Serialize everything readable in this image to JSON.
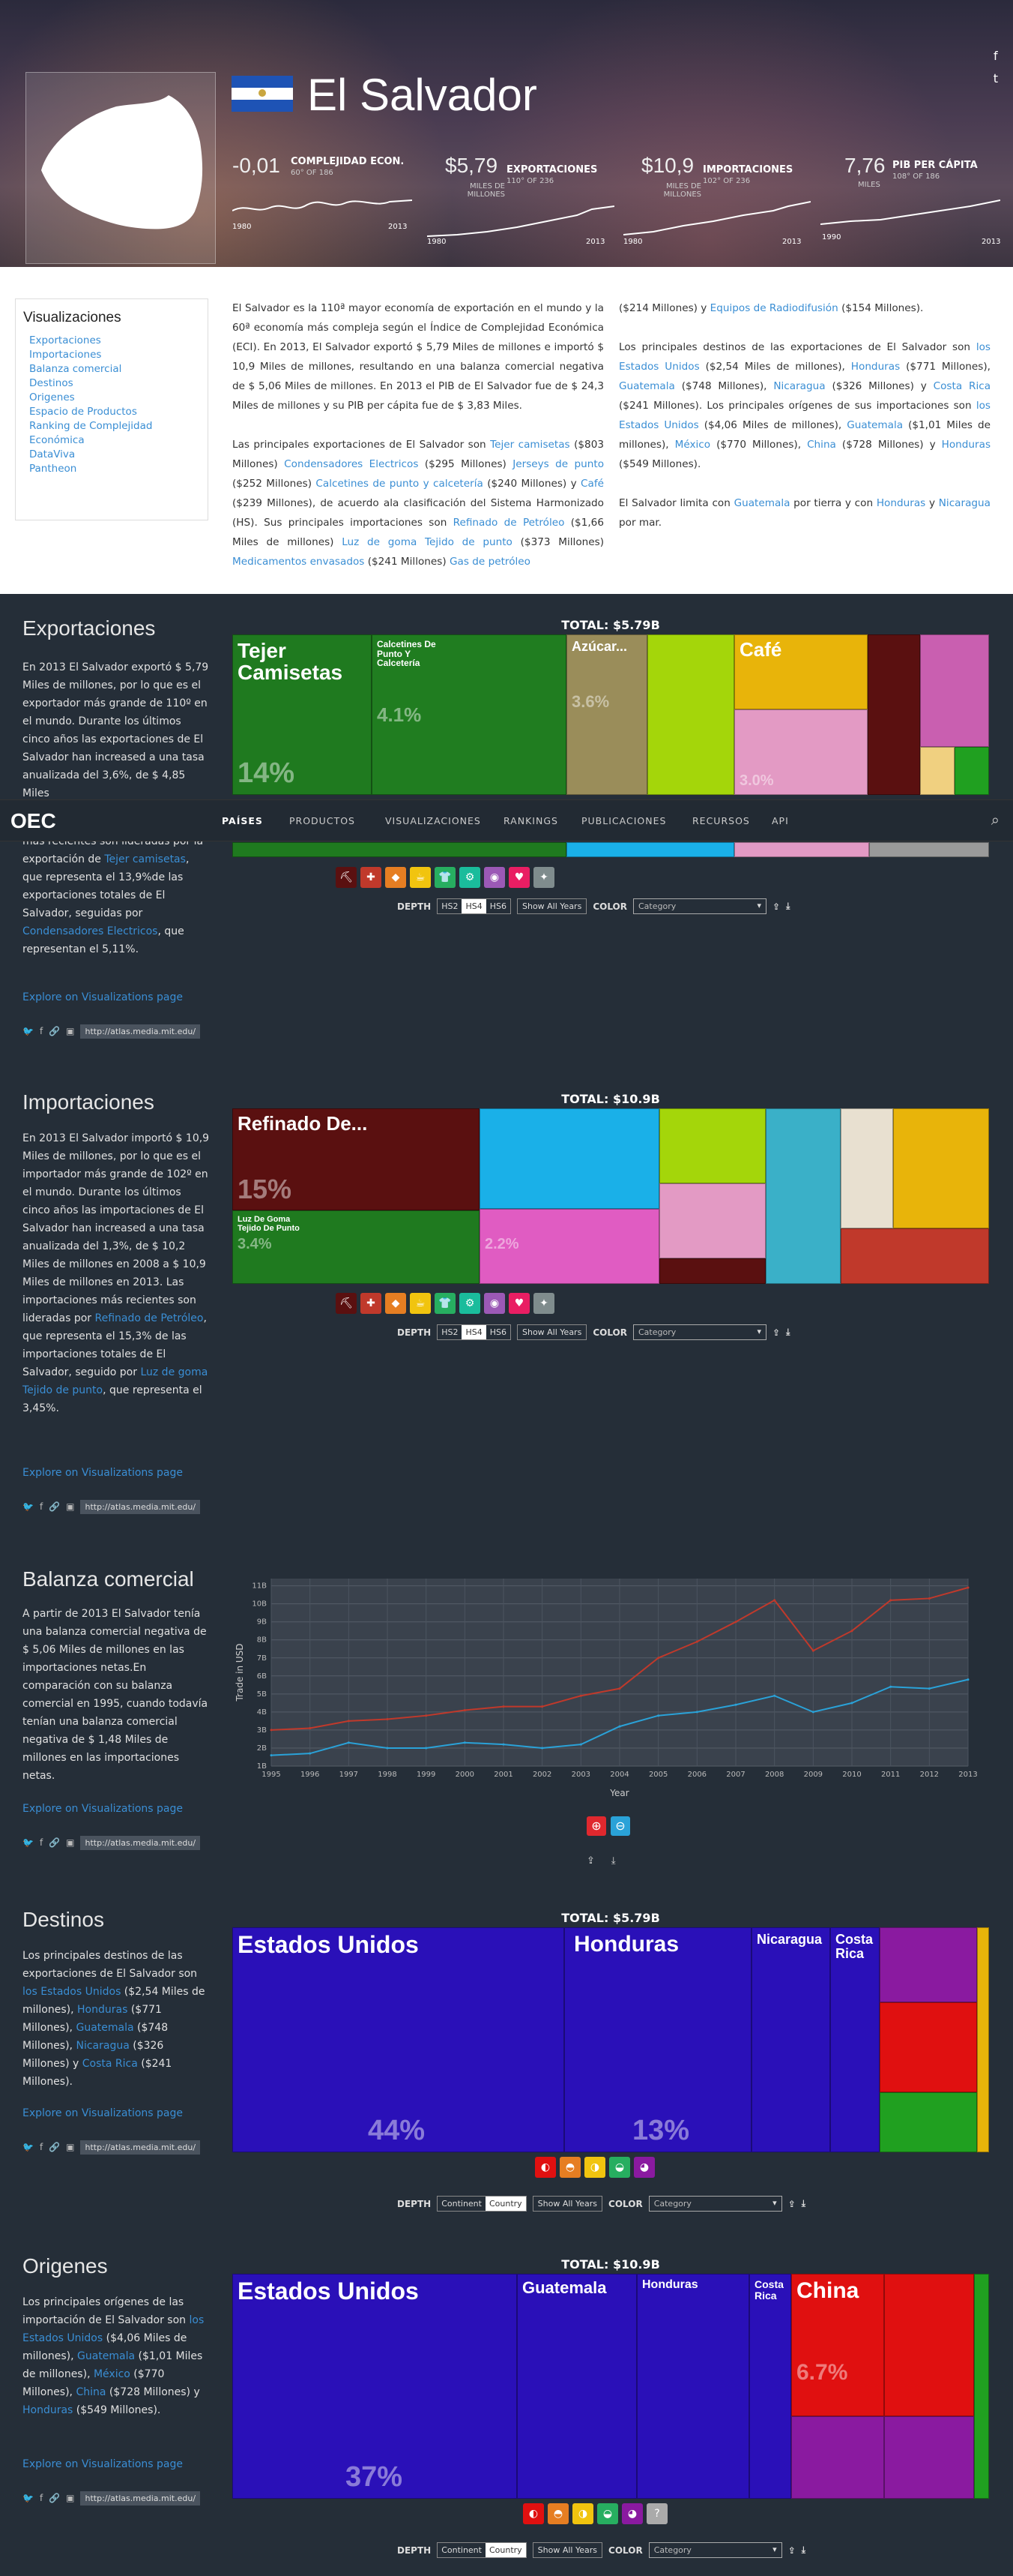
{
  "hero": {
    "country": "El Salvador",
    "social": [
      "f",
      "t"
    ],
    "stats": [
      {
        "value": "-0,01",
        "label": "COMPLEJIDAD ECON.",
        "rank": "60° OF 186",
        "unit": "",
        "start": "1980",
        "end": "2013"
      },
      {
        "value": "$5,79",
        "label": "EXPORTACIONES",
        "rank": "110° OF 236",
        "unit": "MILES DE MILLONES",
        "start": "1980",
        "end": "2013"
      },
      {
        "value": "$10,9",
        "label": "IMPORTACIONES",
        "rank": "102° OF 236",
        "unit": "MILES DE MILLONES",
        "start": "1980",
        "end": "2013"
      },
      {
        "value": "7,76",
        "label": "PIB PER CÁPITA",
        "rank": "108° OF 186",
        "unit": "MILES",
        "start": "1990",
        "end": "2013"
      }
    ]
  },
  "sidebar": {
    "title": "Visualizaciones",
    "links": [
      "Exportaciones",
      "Importaciones",
      "Balanza comercial",
      "Destinos",
      "Origenes",
      "Espacio de Productos",
      "Ranking de Complejidad Económica",
      "DataViva",
      "Pantheon"
    ]
  },
  "intro": {
    "p1": "El Salvador es la 110ª mayor economía de exportación en el mundo y la 60ª economía más compleja según el Índice de Complejidad Económica (ECI). En 2013, El Salvador exportó $ 5,79 Miles de millones e importó $ 10,9 Miles de millones, resultando en una balanza comercial negativa de $ 5,06 Miles de millones. En 2013 el PIB de El Salvador fue de $ 24,3 Miles de millones y su PIB per cápita fue de $ 3,83 Miles.",
    "p2a": "Las principales exportaciones de El Salvador son ",
    "p2_links": [
      "Tejer camisetas",
      "Condensadores Electricos",
      "Jerseys de punto",
      "Calcetines de punto y calcetería",
      "Café",
      "Refinado de Petróleo",
      "Luz de goma Tejido de punto",
      "Medicamentos envasados",
      "Gas de petróleo",
      "Equipos de Radiodifusión"
    ],
    "p2_amounts": [
      "($803 Millones)",
      "($295 Millones)",
      "($252 Millones)",
      "($240 Millones) y",
      "($239 Millones), de acuerdo ala clasificación del Sistema Harmonizado (HS). Sus principales importaciones son",
      "($1,66 Miles de millones)",
      "($373 Millones)",
      "($241 Millones)",
      "($214 Millones) y",
      "($154 Millones)."
    ],
    "p3a": "Los principales destinos de las exportaciones de El Salvador son ",
    "p3_links": [
      "los Estados Unidos",
      "Honduras",
      "Guatemala",
      "Nicaragua",
      "Costa Rica"
    ],
    "p3_amounts": [
      "($2,54 Miles de millones),",
      "($771 Millones),",
      "($748 Millones),",
      "($326 Millones) y",
      "($241 Millones). Los principales orígenes de sus importaciones son"
    ],
    "p3_links2": [
      "los Estados Unidos",
      "Guatemala",
      "México",
      "China",
      "Honduras"
    ],
    "p3_amounts2": [
      "($4,06 Miles de millones),",
      "($1,01 Miles de millones),",
      "($770 Millones),",
      "($728 Millones) y",
      "($549 Millones)."
    ],
    "p4a": "El Salvador limita con ",
    "p4_links": [
      "Guatemala",
      "Honduras",
      "Nicaragua"
    ],
    "p4_mid": " por tierra y con ",
    "p4_y": " y ",
    "p4_end": " por mar."
  },
  "nav": {
    "logo": "OEC",
    "items": [
      "PAÍSES",
      "PRODUCTOS",
      "VISUALIZACIONES",
      "RANKINGS",
      "PUBLICACIONES",
      "RECURSOS",
      "API"
    ]
  },
  "exports": {
    "title": "Exportaciones",
    "desc_pre": "En 2013 El Salvador exportó $ 5,79 Miles de millones, por lo que es el exportador más grande de 110º en el mundo. Durante los últimos cinco años las exportaciones de El Salvador han increased a una tasa anualizada del 3,6%, de $ 4,85 Miles",
    "desc_hidden": "de millones en 2008 a $ 5,79 Miles de millones en 2013. Las exportaciones más recientes son lideradas por la",
    "desc_visible": "más recientes son lideradas por la exportación de ",
    "link1": "Tejer camisetas",
    "desc_mid": ", que representa el 13,9%de las exportaciones totales de El Salvador, seguidas por ",
    "link2": "Condensadores Electricos",
    "desc_end": ", que representan el 5,11%.",
    "total": "TOTAL: $5.79B",
    "explore": "Explore on Visualizations page",
    "url": "http://atlas.media.mit.edu/"
  },
  "imports": {
    "title": "Importaciones",
    "desc_pre": "En 2013 El Salvador importó $ 10,9 Miles de millones, por lo que es el importador más grande de 102º en el mundo. Durante los últimos cinco años las importaciones de El Salvador han increased a una tasa anualizada del 1,3%, de $ 10,2 Miles de millones en 2008 a $ 10,9 Miles de millones en 2013. Las importaciones más recientes son lideradas por ",
    "link1": "Refinado de Petróleo",
    "desc_mid": ", que representa el 15,3% de las importaciones totales de El Salvador, seguido por ",
    "link2": "Luz de goma Tejido de punto",
    "desc_end": ", que representa el 3,45%.",
    "total": "TOTAL: $10.9B",
    "explore": "Explore on Visualizations page",
    "url": "http://atlas.media.mit.edu/"
  },
  "balance": {
    "title": "Balanza comercial",
    "desc": "A partir de 2013 El Salvador tenía una balanza comercial negativa de $ 5,06 Miles de millones en las importaciones netas.En comparación con su balanza comercial en 1995, cuando todavía tenían una balanza comercial negativa de $ 1,48 Miles de millones en las importaciones netas.",
    "explore": "Explore on Visualizations page",
    "url": "http://atlas.media.mit.edu/"
  },
  "destinations": {
    "title": "Destinos",
    "desc_pre": "Los principales destinos de las exportaciones de El Salvador son ",
    "links": [
      "los Estados Unidos",
      "Honduras",
      "Guatemala",
      "Nicaragua",
      "Costa Rica"
    ],
    "amounts": [
      " ($2,54 Miles de millones), ",
      " ($771 Millones), ",
      " ($748 Millones), ",
      " ($326 Millones) y ",
      " ($241 Millones)."
    ],
    "total": "TOTAL: $5.79B",
    "explore": "Explore on Visualizations page",
    "url": "http://atlas.media.mit.edu/"
  },
  "origins": {
    "title": "Origenes",
    "desc_pre": "Los principales orígenes de las importación de El Salvador son ",
    "links": [
      "los Estados Unidos",
      "Guatemala",
      "México",
      "China",
      "Honduras"
    ],
    "amounts": [
      " ($4,06 Miles de millones), ",
      " ($1,01 Miles de millones), ",
      " ($770 Millones), ",
      " ($728 Millones) y ",
      " ($549 Millones)."
    ],
    "total": "TOTAL: $10.9B",
    "explore": "Explore on Visualizations page",
    "url": "http://atlas.media.mit.edu/"
  },
  "controls": {
    "depth": "DEPTH",
    "hs": [
      "HS2",
      "HS4",
      "HS6"
    ],
    "geo": [
      "Continent",
      "Country"
    ],
    "show_all": "Show All Years",
    "color": "COLOR",
    "category": "Category"
  },
  "colors": {
    "link": "#3a8ed4",
    "bg": "#252e38",
    "exports_line": "#c0392b",
    "imports_line": "#2aa2d8"
  },
  "chart_data": {
    "type": "line",
    "x": [
      1995,
      1996,
      1997,
      1998,
      1999,
      2000,
      2001,
      2002,
      2003,
      2004,
      2005,
      2006,
      2007,
      2008,
      2009,
      2010,
      2011,
      2012,
      2013
    ],
    "series": [
      {
        "values": [
          3.0,
          3.1,
          3.5,
          3.6,
          3.8,
          4.1,
          4.3,
          4.3,
          4.9,
          5.3,
          7.0,
          7.9,
          9.0,
          10.2,
          7.4,
          8.5,
          10.2,
          10.3,
          10.9
        ]
      },
      {
        "values": [
          1.6,
          1.7,
          2.3,
          2.0,
          2.0,
          2.3,
          2.2,
          2.0,
          2.2,
          3.2,
          3.8,
          4.0,
          4.4,
          4.9,
          4.0,
          4.5,
          5.4,
          5.3,
          5.8
        ]
      }
    ],
    "xlabel": "Year",
    "ylabel": "Trade in USD",
    "yticks": [
      "1B",
      "2B",
      "3B",
      "4B",
      "5B",
      "6B",
      "7B",
      "8B",
      "9B",
      "10B",
      "11B"
    ],
    "ylim": [
      1,
      11.4
    ],
    "grid": true
  }
}
